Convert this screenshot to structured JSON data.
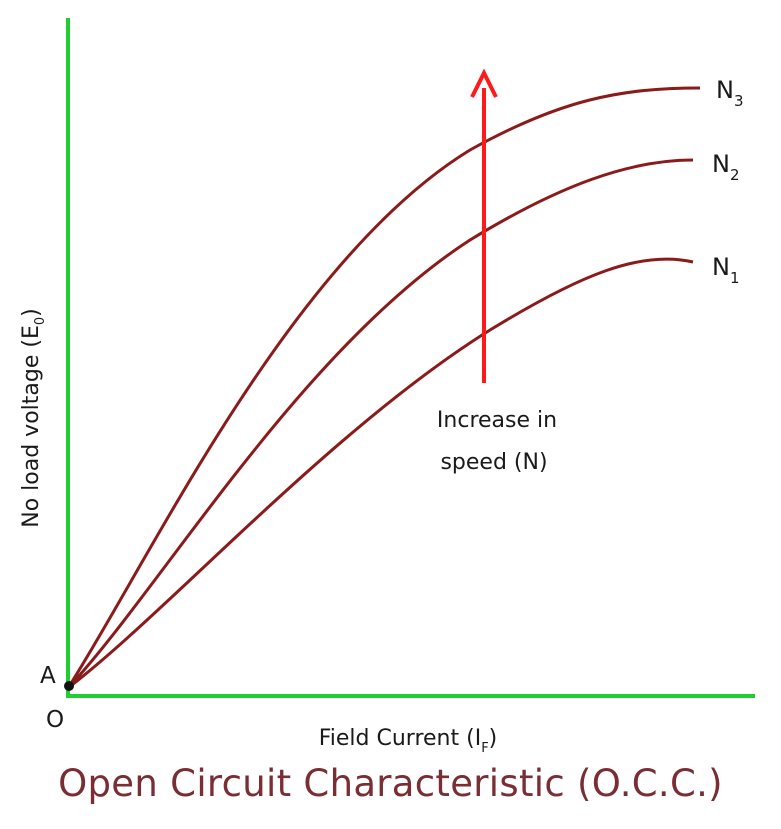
{
  "diagram": {
    "title": "Open Circuit Characteristic (O.C.C.)",
    "y_axis_label": {
      "main": "No load voltage (E",
      "sub": "0",
      "end": ")"
    },
    "x_axis_label": {
      "main": "Field Current (I",
      "sub": "F",
      "end": ")"
    },
    "origin_label": "O",
    "point_a_label": "A",
    "annotation": {
      "line1": "Increase in",
      "line2": "speed (N)"
    },
    "curves": [
      {
        "letter": "N",
        "sub": "1"
      },
      {
        "letter": "N",
        "sub": "2"
      },
      {
        "letter": "N",
        "sub": "3"
      }
    ],
    "colors": {
      "axes": "#22cc33",
      "curves": "#8b1a1a",
      "arrow": "#ff1a1a",
      "title": "#7a2e33"
    }
  }
}
